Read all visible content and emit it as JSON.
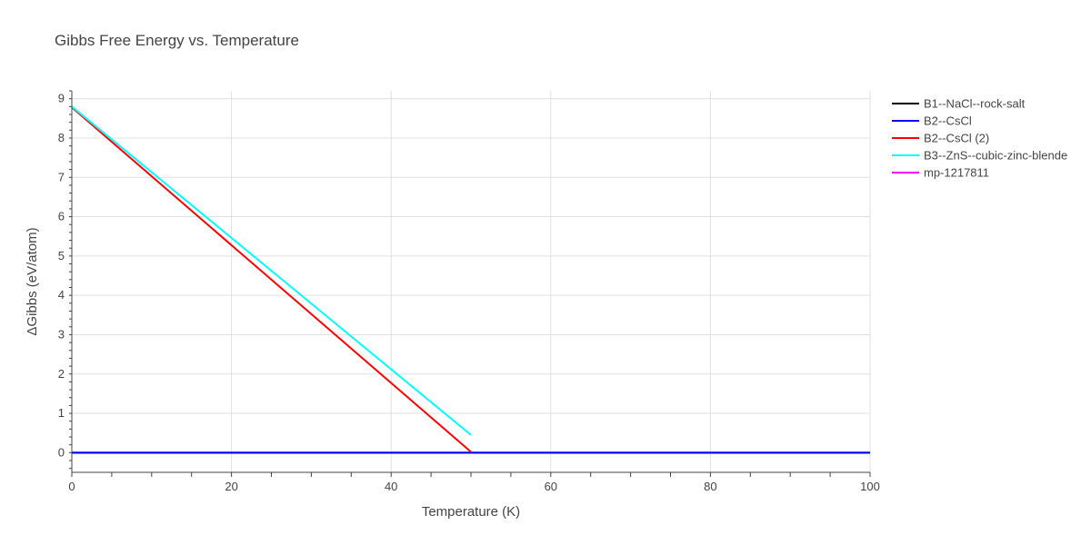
{
  "chart_data": {
    "type": "line",
    "title": "Gibbs Free Energy vs. Temperature",
    "xlabel": "Temperature (K)",
    "ylabel": "ΔGibbs (eV/atom)",
    "xlim": [
      0,
      100
    ],
    "ylim": [
      -0.5,
      9.2
    ],
    "xticks": [
      0,
      20,
      40,
      60,
      80,
      100
    ],
    "yticks": [
      0,
      1,
      2,
      3,
      4,
      5,
      6,
      7,
      8,
      9
    ],
    "grid": true,
    "legend_position": "top-right",
    "series": [
      {
        "name": "B1--NaCl--rock-salt",
        "color": "#000000",
        "x": [
          0,
          100
        ],
        "y": [
          0,
          0
        ]
      },
      {
        "name": "B2--CsCl",
        "color": "#0000ff",
        "x": [
          0,
          100
        ],
        "y": [
          0,
          0
        ]
      },
      {
        "name": "B2--CsCl (2)",
        "color": "#ff0000",
        "x": [
          0,
          50
        ],
        "y": [
          8.78,
          0.02
        ]
      },
      {
        "name": "B3--ZnS--cubic-zinc-blende",
        "color": "#00ffff",
        "x": [
          0,
          50
        ],
        "y": [
          8.8,
          0.45
        ]
      },
      {
        "name": "mp-1217811",
        "color": "#ff00ff",
        "x": [],
        "y": []
      }
    ]
  }
}
